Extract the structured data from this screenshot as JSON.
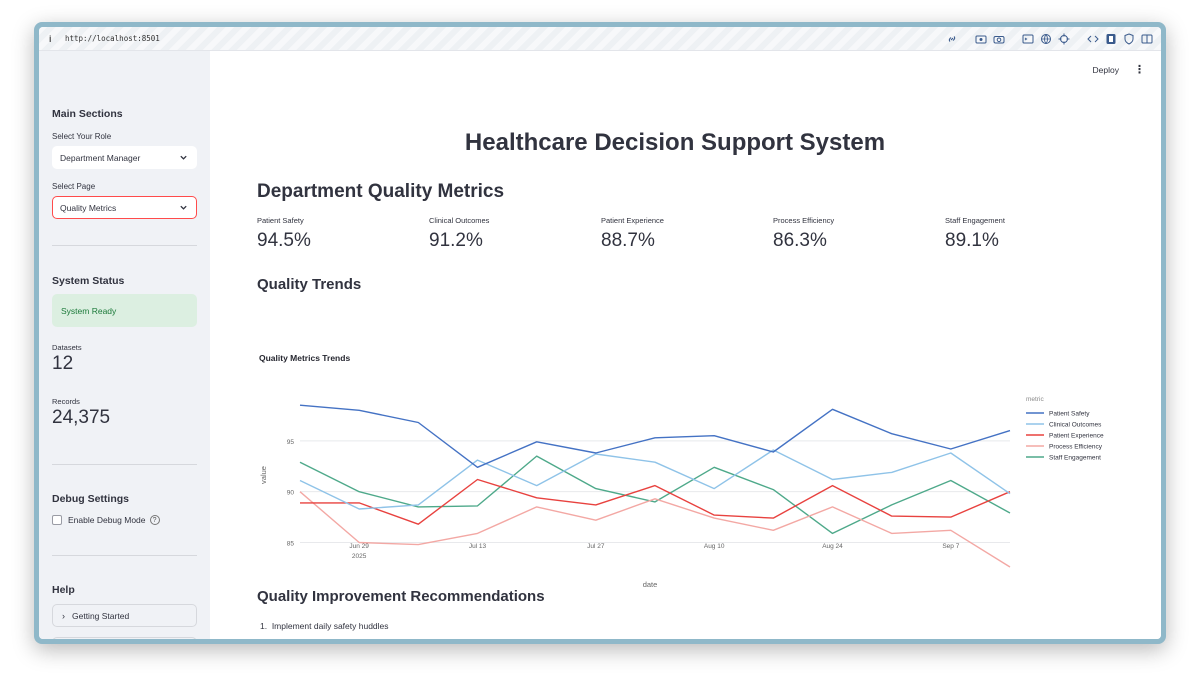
{
  "browser": {
    "url": "http://localhost:8501",
    "info_glyph": "i"
  },
  "sidebar": {
    "main_sections_title": "Main Sections",
    "role_label": "Select Your Role",
    "role_value": "Department Manager",
    "page_label": "Select Page",
    "page_value": "Quality Metrics",
    "system_status_title": "System Status",
    "status_message": "System Ready",
    "datasets_label": "Datasets",
    "datasets_value": "12",
    "records_label": "Records",
    "records_value": "24,375",
    "debug_title": "Debug Settings",
    "debug_checkbox_label": "Enable Debug Mode",
    "help_glyph": "?",
    "help_title": "Help",
    "getting_started_label": "Getting Started"
  },
  "toolbar": {
    "deploy_label": "Deploy",
    "menu_glyph": "⋮"
  },
  "main": {
    "page_title": "Healthcare Decision Support System",
    "section_title": "Department Quality Metrics",
    "metrics": [
      {
        "label": "Patient Safety",
        "value": "94.5%"
      },
      {
        "label": "Clinical Outcomes",
        "value": "91.2%"
      },
      {
        "label": "Patient Experience",
        "value": "88.7%"
      },
      {
        "label": "Process Efficiency",
        "value": "86.3%"
      },
      {
        "label": "Staff Engagement",
        "value": "89.1%"
      }
    ],
    "trends_title": "Quality Trends",
    "recommendations_title": "Quality Improvement Recommendations",
    "recommendations": [
      "Implement daily safety huddles"
    ]
  },
  "colors": {
    "accent": "#ff4b4b",
    "status_bg": "#dcefe1",
    "status_text": "#1c7a3a"
  },
  "chart_data": {
    "type": "line",
    "title": "Quality Metrics Trends",
    "xlabel": "date",
    "ylabel": "value",
    "legend_title": "metric",
    "legend_position": "right",
    "ylim": [
      82.4,
      99.7
    ],
    "yticks": [
      85,
      90,
      95
    ],
    "grid": true,
    "x": [
      "2025-06-22",
      "2025-06-29",
      "2025-07-06",
      "2025-07-13",
      "2025-07-20",
      "2025-07-27",
      "2025-08-03",
      "2025-08-10",
      "2025-08-17",
      "2025-08-24",
      "2025-08-31",
      "2025-09-07",
      "2025-09-14"
    ],
    "xticks": [
      {
        "date": "2025-06-29",
        "label": "Jun 29",
        "sublabel": "2025"
      },
      {
        "date": "2025-07-13",
        "label": "Jul 13",
        "sublabel": ""
      },
      {
        "date": "2025-07-27",
        "label": "Jul 27",
        "sublabel": ""
      },
      {
        "date": "2025-08-10",
        "label": "Aug 10",
        "sublabel": ""
      },
      {
        "date": "2025-08-24",
        "label": "Aug 24",
        "sublabel": ""
      },
      {
        "date": "2025-09-07",
        "label": "Sep 7",
        "sublabel": ""
      }
    ],
    "series": [
      {
        "name": "Patient Safety",
        "color": "#4472c4",
        "values": [
          98.5,
          98.0,
          96.8,
          92.4,
          94.9,
          93.8,
          95.3,
          95.5,
          93.9,
          98.1,
          95.7,
          94.2,
          96.0
        ]
      },
      {
        "name": "Clinical Outcomes",
        "color": "#8fc3e8",
        "values": [
          91.1,
          88.3,
          88.7,
          93.1,
          90.6,
          93.7,
          92.9,
          90.3,
          94.1,
          91.2,
          91.9,
          93.8,
          89.8
        ]
      },
      {
        "name": "Patient Experience",
        "color": "#e8423f",
        "values": [
          88.9,
          88.9,
          86.8,
          91.2,
          89.4,
          88.7,
          90.6,
          87.7,
          87.4,
          90.6,
          87.6,
          87.5,
          90.0
        ]
      },
      {
        "name": "Process Efficiency",
        "color": "#f3a8a4",
        "values": [
          90.0,
          85.0,
          84.8,
          85.9,
          88.5,
          87.2,
          89.3,
          87.4,
          86.2,
          88.5,
          85.9,
          86.2,
          82.6
        ]
      },
      {
        "name": "Staff Engagement",
        "color": "#4ea98a",
        "values": [
          92.9,
          90.0,
          88.5,
          88.6,
          93.5,
          90.3,
          89.0,
          92.4,
          90.2,
          85.9,
          88.7,
          91.1,
          87.9
        ]
      }
    ]
  }
}
